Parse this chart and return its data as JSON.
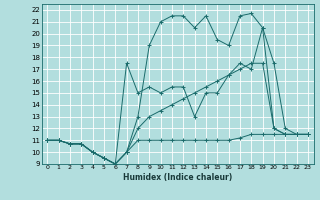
{
  "xlabel": "Humidex (Indice chaleur)",
  "xlim": [
    -0.5,
    23.5
  ],
  "ylim": [
    9,
    22.5
  ],
  "yticks": [
    9,
    10,
    11,
    12,
    13,
    14,
    15,
    16,
    17,
    18,
    19,
    20,
    21,
    22
  ],
  "xticks": [
    0,
    1,
    2,
    3,
    4,
    5,
    6,
    7,
    8,
    9,
    10,
    11,
    12,
    13,
    14,
    15,
    16,
    17,
    18,
    19,
    20,
    21,
    22,
    23
  ],
  "bg_color": "#b2dede",
  "grid_color": "#ffffff",
  "line_color": "#1a6b6b",
  "lines": [
    {
      "x": [
        0,
        1,
        2,
        3,
        4,
        5,
        6,
        7,
        8,
        9,
        10,
        11,
        12,
        13,
        14,
        15,
        16,
        17,
        18,
        19,
        20,
        21,
        22,
        23
      ],
      "y": [
        11,
        11,
        10.7,
        10.7,
        10,
        9.5,
        9,
        10,
        11,
        11,
        11,
        11,
        11,
        11,
        11,
        11,
        11,
        11.2,
        11.5,
        11.5,
        11.5,
        11.5,
        11.5,
        11.5
      ]
    },
    {
      "x": [
        0,
        1,
        2,
        3,
        4,
        5,
        6,
        7,
        8,
        9,
        10,
        11,
        12,
        13,
        14,
        15,
        16,
        17,
        18,
        19,
        20,
        21,
        22,
        23
      ],
      "y": [
        11,
        11,
        10.7,
        10.7,
        10,
        9.5,
        9,
        10,
        12,
        13,
        13.5,
        14,
        14.5,
        15,
        15.5,
        16,
        16.5,
        17,
        17.5,
        17.5,
        12,
        11.5,
        11.5,
        11.5
      ]
    },
    {
      "x": [
        0,
        1,
        2,
        3,
        4,
        5,
        6,
        7,
        8,
        9,
        10,
        11,
        12,
        13,
        14,
        15,
        16,
        17,
        18,
        19,
        20,
        21,
        22,
        23
      ],
      "y": [
        11,
        11,
        10.7,
        10.7,
        10,
        9.5,
        9,
        10,
        13,
        19,
        21,
        21.5,
        21.5,
        20.5,
        21.5,
        19.5,
        19,
        21.5,
        21.7,
        20.5,
        12,
        11.5,
        11.5,
        11.5
      ]
    },
    {
      "x": [
        0,
        1,
        2,
        3,
        4,
        5,
        6,
        7,
        8,
        9,
        10,
        11,
        12,
        13,
        14,
        15,
        16,
        17,
        18,
        19,
        20,
        21,
        22,
        23
      ],
      "y": [
        11,
        11,
        10.7,
        10.7,
        10,
        9.5,
        9,
        17.5,
        15,
        15.5,
        15,
        15.5,
        15.5,
        13,
        15,
        15,
        16.5,
        17.5,
        17,
        20.5,
        17.5,
        12,
        11.5,
        11.5
      ]
    }
  ]
}
